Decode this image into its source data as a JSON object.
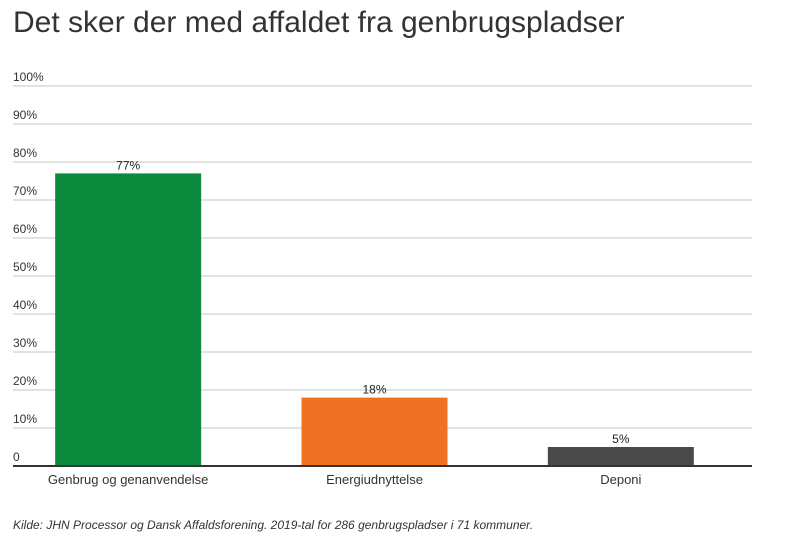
{
  "chart_data": {
    "type": "bar",
    "title": "Det sker der med affaldet fra genbrugspladser",
    "categories": [
      "Genbrug og genanvendelse",
      "Energiudnyttelse",
      "Deponi"
    ],
    "values": [
      77,
      18,
      5
    ],
    "data_labels": [
      "77%",
      "18%",
      "5%"
    ],
    "bar_colors": [
      "#0b8a3e",
      "#f07124",
      "#4a4a4a"
    ],
    "ylim": [
      0,
      100
    ],
    "y_ticks": [
      0,
      10,
      20,
      30,
      40,
      50,
      60,
      70,
      80,
      90,
      100
    ],
    "y_tick_labels": [
      "0",
      "10%",
      "20%",
      "30%",
      "40%",
      "50%",
      "60%",
      "70%",
      "80%",
      "90%",
      "100%"
    ],
    "grid": true,
    "legend": "none",
    "xlabel": "",
    "ylabel": ""
  },
  "source": "Kilde: JHN Processor og Dansk Affaldsforening. 2019-tal for 286 genbrugspladser i 71 kommuner."
}
